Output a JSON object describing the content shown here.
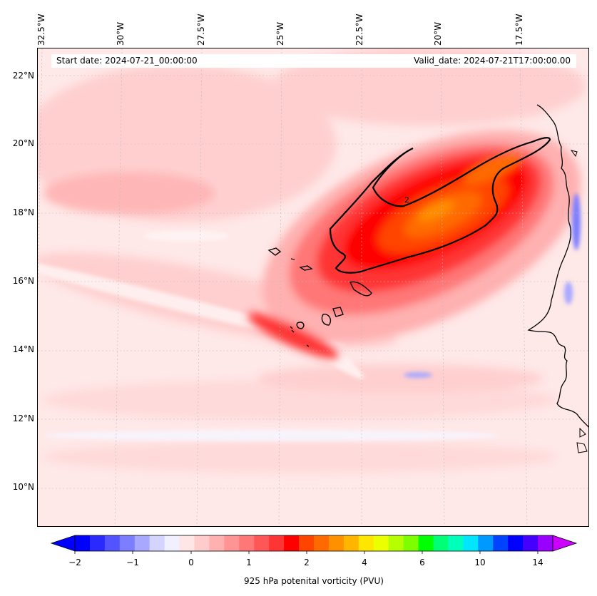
{
  "map": {
    "start_date": "Start date: 2024-07-21_00:00:00",
    "valid_date": "Valid_date: 2024-07-21T17:00:00.00",
    "longitude_labels": [
      "32.5°W",
      "30°W",
      "27.5°W",
      "25°W",
      "22.5°W",
      "20°W",
      "17.5°W"
    ],
    "latitude_labels": [
      "22°N",
      "20°N",
      "18°N",
      "16°N",
      "14°N",
      "12°N",
      "10°N"
    ],
    "contour_label": "2",
    "extent": {
      "lon": [
        -32.7,
        -15.8
      ],
      "lat": [
        9.0,
        22.7
      ]
    },
    "colors": {
      "background": "#ffe8e8",
      "max_pv": "#ff8800",
      "coast": "#000000"
    }
  },
  "colorbar": {
    "label": "925 hPa potenital vorticity (PVU)",
    "ticks": [
      "−2",
      "−1",
      "0",
      "1",
      "2",
      "4",
      "6",
      "10",
      "14"
    ],
    "colors": [
      "#0000ff",
      "#2a2aff",
      "#5454ff",
      "#7d7dff",
      "#a8a8ff",
      "#d4d4ff",
      "#f0f0ff",
      "#ffe6e6",
      "#ffcccc",
      "#ffb0b0",
      "#ff9494",
      "#ff7777",
      "#ff5757",
      "#ff3434",
      "#ff0000",
      "#ff4400",
      "#ff6a00",
      "#ff9000",
      "#ffb600",
      "#ffe600",
      "#ecff00",
      "#b5ff00",
      "#7dff00",
      "#00ff00",
      "#00ff77",
      "#00ffbb",
      "#00e6ff",
      "#0099ff",
      "#0044ff",
      "#0000ff",
      "#4400ff",
      "#9900ff"
    ],
    "extend_low_color": "#0000ff",
    "extend_high_color": "#cc00ff"
  }
}
